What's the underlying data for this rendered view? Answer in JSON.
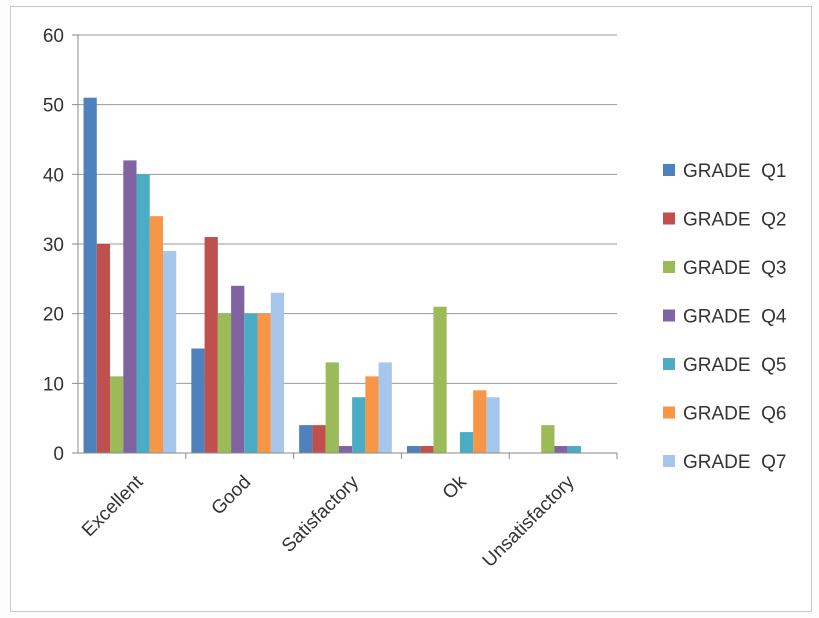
{
  "chart_data": {
    "type": "bar",
    "categories": [
      "Excellent",
      "Good",
      "Satisfactory",
      "Ok",
      "Unsatisfactory"
    ],
    "series": [
      {
        "name": "GRADE  Q1",
        "color": "#4f81bd",
        "values": [
          51,
          15,
          4,
          1,
          0
        ]
      },
      {
        "name": "GRADE  Q2",
        "color": "#c0504d",
        "values": [
          30,
          31,
          4,
          1,
          0
        ]
      },
      {
        "name": "GRADE  Q3",
        "color": "#9bbb59",
        "values": [
          11,
          20,
          13,
          21,
          4
        ]
      },
      {
        "name": "GRADE  Q4",
        "color": "#8064a2",
        "values": [
          42,
          24,
          1,
          0,
          1
        ]
      },
      {
        "name": "GRADE  Q5",
        "color": "#4bacc6",
        "values": [
          40,
          20,
          8,
          3,
          1
        ]
      },
      {
        "name": "GRADE  Q6",
        "color": "#f79646",
        "values": [
          34,
          20,
          11,
          9,
          0
        ]
      },
      {
        "name": "GRADE  Q7",
        "color": "#a7c6ec",
        "values": [
          29,
          23,
          13,
          8,
          0
        ]
      }
    ],
    "ylim": [
      0,
      60
    ],
    "yticks": [
      "0",
      "10",
      "20",
      "30",
      "40",
      "50",
      "60"
    ],
    "grid": true,
    "legend_position": "right"
  }
}
